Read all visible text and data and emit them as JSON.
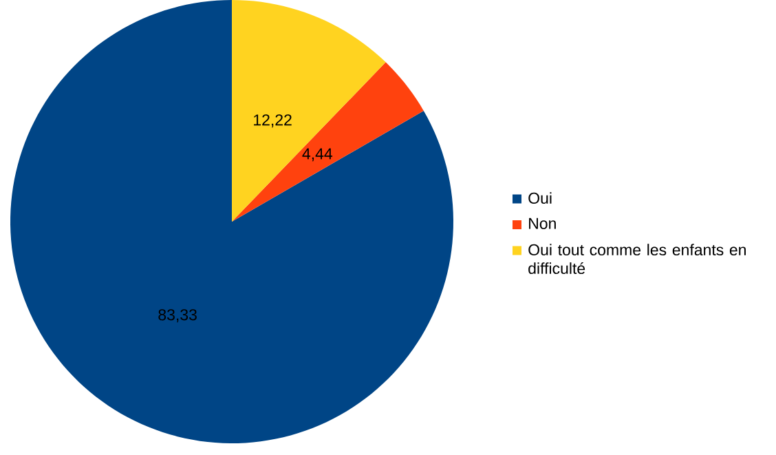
{
  "chart_data": {
    "type": "pie",
    "categories": [
      "Oui",
      "Non",
      "Oui tout comme les enfants en difficulté"
    ],
    "values": [
      83.33,
      4.44,
      12.22
    ],
    "value_labels": [
      "83,33",
      "4,44",
      "12,22"
    ],
    "colors": [
      "#004586",
      "#ff420e",
      "#ffd320"
    ],
    "legend": "right"
  }
}
